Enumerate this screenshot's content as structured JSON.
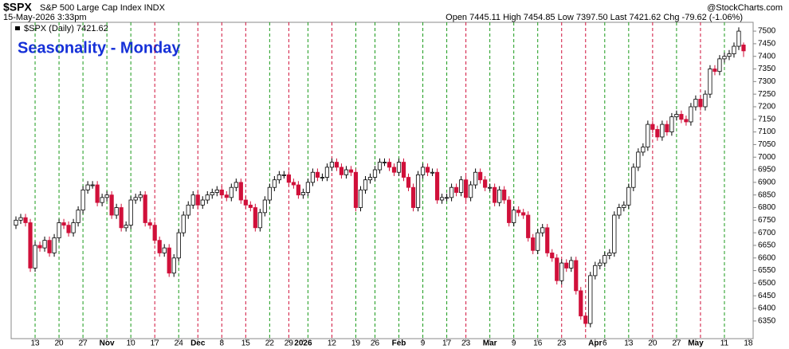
{
  "header": {
    "symbol": "$SPX",
    "name": "S&P 500 Large Cap Index INDX",
    "timestamp": "15-May-2026 3:33pm",
    "quote": "Open 7445.11  High 7454.85  Low 7397.50  Last 7421.62  Chg -79.62 (-1.06%)",
    "source": "@StockCharts.com"
  },
  "chart_data": {
    "type": "candlestick",
    "title": "Seasonality - Monday",
    "legend": "$SPX (Daily) 7421.62",
    "up_color": "#ffffff",
    "down_color": "#d0103a",
    "open": [
      6730,
      6750,
      6760,
      6740,
      6560,
      6650,
      6640,
      6670,
      6620,
      6680,
      6740,
      6730,
      6700,
      6740,
      6790,
      6870,
      6890,
      6890,
      6820,
      6840,
      6850,
      6770,
      6800,
      6720,
      6730,
      6830,
      6840,
      6850,
      6740,
      6730,
      6670,
      6620,
      6640,
      6540,
      6600,
      6700,
      6770,
      6810,
      6850,
      6810,
      6830,
      6850,
      6860,
      6870,
      6850,
      6840,
      6880,
      6900,
      6830,
      6810,
      6800,
      6720,
      6780,
      6830,
      6880,
      6910,
      6930,
      6930,
      6900,
      6890,
      6850,
      6860,
      6900,
      6940,
      6920,
      6920,
      6960,
      6980,
      6960,
      6930,
      6950,
      6940,
      6800,
      6870,
      6910,
      6920,
      6950,
      6980,
      6980,
      6960,
      6940,
      6980,
      6920,
      6880,
      6800,
      6930,
      6960,
      6940,
      6940,
      6830,
      6840,
      6840,
      6880,
      6860,
      6910,
      6840,
      6890,
      6940,
      6910,
      6880,
      6880,
      6820,
      6870,
      6830,
      6740,
      6790,
      6780,
      6770,
      6680,
      6630,
      6700,
      6720,
      6620,
      6600,
      6510,
      6580,
      6560,
      6590,
      6470,
      6370,
      6340,
      6530,
      6570,
      6580,
      6610,
      6620,
      6770,
      6800,
      6810,
      6880,
      6960,
      7020,
      7040,
      7130,
      7110,
      7080,
      7130,
      7100,
      7160,
      7170,
      7150,
      7140,
      7200,
      7230,
      7200,
      7250,
      7350,
      7340,
      7390,
      7400,
      7410,
      7440,
      7445.11
    ],
    "high": [
      6765,
      6775,
      6775,
      6755,
      6665,
      6665,
      6685,
      6685,
      6695,
      6755,
      6755,
      6745,
      6755,
      6805,
      6885,
      6905,
      6905,
      6905,
      6855,
      6865,
      6865,
      6815,
      6815,
      6745,
      6845,
      6855,
      6865,
      6865,
      6755,
      6745,
      6685,
      6655,
      6655,
      6615,
      6715,
      6785,
      6825,
      6865,
      6865,
      6845,
      6865,
      6875,
      6885,
      6885,
      6865,
      6895,
      6915,
      6915,
      6845,
      6825,
      6815,
      6795,
      6845,
      6895,
      6925,
      6945,
      6945,
      6945,
      6915,
      6905,
      6875,
      6915,
      6955,
      6955,
      6935,
      6975,
      6995,
      6995,
      6975,
      6965,
      6965,
      6955,
      6885,
      6925,
      6935,
      6965,
      6995,
      6995,
      6995,
      6975,
      6995,
      6995,
      6935,
      6895,
      6945,
      6975,
      6975,
      6955,
      6955,
      6855,
      6855,
      6895,
      6895,
      6925,
      6925,
      6905,
      6955,
      6955,
      6925,
      6895,
      6895,
      6885,
      6885,
      6845,
      6805,
      6805,
      6795,
      6785,
      6695,
      6715,
      6735,
      6735,
      6635,
      6615,
      6595,
      6595,
      6605,
      6605,
      6485,
      6385,
      6545,
      6585,
      6595,
      6625,
      6635,
      6785,
      6815,
      6825,
      6895,
      6975,
      7035,
      7055,
      7145,
      7145,
      7125,
      7145,
      7145,
      7175,
      7185,
      7185,
      7165,
      7215,
      7245,
      7245,
      7265,
      7365,
      7365,
      7405,
      7415,
      7425,
      7455,
      7515,
      7454.85
    ],
    "low": [
      6715,
      6735,
      6725,
      6545,
      6545,
      6625,
      6625,
      6605,
      6605,
      6665,
      6715,
      6685,
      6685,
      6725,
      6775,
      6855,
      6875,
      6805,
      6805,
      6825,
      6755,
      6755,
      6705,
      6705,
      6715,
      6815,
      6825,
      6725,
      6715,
      6655,
      6605,
      6605,
      6525,
      6525,
      6585,
      6685,
      6755,
      6795,
      6795,
      6795,
      6815,
      6835,
      6845,
      6835,
      6825,
      6825,
      6865,
      6815,
      6795,
      6785,
      6705,
      6705,
      6765,
      6815,
      6865,
      6895,
      6915,
      6885,
      6875,
      6835,
      6835,
      6845,
      6885,
      6905,
      6905,
      6905,
      6945,
      6945,
      6915,
      6915,
      6925,
      6785,
      6785,
      6855,
      6895,
      6905,
      6935,
      6965,
      6945,
      6925,
      6925,
      6905,
      6865,
      6785,
      6785,
      6915,
      6925,
      6925,
      6815,
      6815,
      6825,
      6825,
      6845,
      6845,
      6825,
      6825,
      6875,
      6895,
      6865,
      6865,
      6805,
      6805,
      6815,
      6725,
      6725,
      6765,
      6755,
      6665,
      6615,
      6615,
      6685,
      6605,
      6585,
      6495,
      6495,
      6545,
      6545,
      6455,
      6355,
      6325,
      6325,
      6515,
      6555,
      6565,
      6595,
      6605,
      6755,
      6785,
      6795,
      6865,
      6945,
      7005,
      7025,
      7095,
      7065,
      7065,
      7085,
      7085,
      7145,
      7135,
      7125,
      7125,
      7185,
      7185,
      7185,
      7235,
      7325,
      7325,
      7375,
      7385,
      7395,
      7425,
      7397.5
    ],
    "close": [
      6750,
      6760,
      6740,
      6560,
      6650,
      6640,
      6670,
      6620,
      6680,
      6740,
      6730,
      6700,
      6740,
      6790,
      6870,
      6890,
      6890,
      6820,
      6840,
      6850,
      6770,
      6800,
      6720,
      6730,
      6830,
      6840,
      6850,
      6740,
      6730,
      6670,
      6620,
      6640,
      6540,
      6600,
      6700,
      6770,
      6810,
      6850,
      6810,
      6830,
      6850,
      6860,
      6870,
      6850,
      6840,
      6880,
      6900,
      6830,
      6810,
      6800,
      6720,
      6780,
      6830,
      6880,
      6910,
      6930,
      6930,
      6900,
      6890,
      6850,
      6860,
      6900,
      6940,
      6920,
      6920,
      6960,
      6980,
      6960,
      6930,
      6950,
      6940,
      6800,
      6870,
      6910,
      6920,
      6950,
      6980,
      6980,
      6960,
      6940,
      6980,
      6920,
      6880,
      6800,
      6930,
      6960,
      6940,
      6940,
      6830,
      6840,
      6840,
      6880,
      6860,
      6910,
      6840,
      6890,
      6940,
      6910,
      6880,
      6880,
      6820,
      6870,
      6830,
      6740,
      6790,
      6780,
      6770,
      6680,
      6630,
      6700,
      6720,
      6620,
      6600,
      6510,
      6580,
      6560,
      6590,
      6470,
      6370,
      6340,
      6530,
      6570,
      6580,
      6610,
      6620,
      6770,
      6800,
      6810,
      6880,
      6960,
      7020,
      7040,
      7130,
      7110,
      7080,
      7130,
      7100,
      7160,
      7170,
      7150,
      7140,
      7200,
      7230,
      7200,
      7250,
      7350,
      7340,
      7390,
      7400,
      7410,
      7440,
      7500,
      7421.62
    ],
    "monday_lines": [
      {
        "value": 4,
        "color": "#1a9a1a"
      },
      {
        "value": 9,
        "color": "#1a9a1a"
      },
      {
        "value": 14,
        "color": "#1a9a1a"
      },
      {
        "value": 19,
        "color": "#1a9a1a"
      },
      {
        "value": 24,
        "color": "#1a9a1a"
      },
      {
        "value": 29,
        "color": "#d0103a"
      },
      {
        "value": 34,
        "color": "#1a9a1a"
      },
      {
        "value": 38,
        "color": "#d0103a"
      },
      {
        "value": 43,
        "color": "#d0103a"
      },
      {
        "value": 48,
        "color": "#d0103a"
      },
      {
        "value": 53,
        "color": "#1a9a1a"
      },
      {
        "value": 57,
        "color": "#d0103a"
      },
      {
        "value": 61,
        "color": "#1a9a1a"
      },
      {
        "value": 66,
        "color": "#d0103a"
      },
      {
        "value": 71,
        "color": "#1a9a1a"
      },
      {
        "value": 75,
        "color": "#1a9a1a"
      },
      {
        "value": 80,
        "color": "#1a9a1a"
      },
      {
        "value": 85,
        "color": "#1a9a1a"
      },
      {
        "value": 90,
        "color": "#1a9a1a"
      },
      {
        "value": 94,
        "color": "#d0103a"
      },
      {
        "value": 99,
        "color": "#1a9a1a"
      },
      {
        "value": 104,
        "color": "#1a9a1a"
      },
      {
        "value": 109,
        "color": "#1a9a1a"
      },
      {
        "value": 114,
        "color": "#d0103a"
      },
      {
        "value": 119,
        "color": "#d0103a"
      },
      {
        "value": 123,
        "color": "#1a9a1a"
      },
      {
        "value": 128,
        "color": "#1a9a1a"
      },
      {
        "value": 133,
        "color": "#d0103a"
      },
      {
        "value": 138,
        "color": "#1a9a1a"
      },
      {
        "value": 143,
        "color": "#d0103a"
      },
      {
        "value": 148,
        "color": "#1a9a1a"
      }
    ],
    "xlim": [
      -1,
      154
    ],
    "xticks": [
      {
        "value": 4,
        "label": "13"
      },
      {
        "value": 9,
        "label": "20"
      },
      {
        "value": 14,
        "label": "27"
      },
      {
        "value": 19,
        "label": "Nov"
      },
      {
        "value": 24,
        "label": "10"
      },
      {
        "value": 29,
        "label": "17"
      },
      {
        "value": 34,
        "label": "24"
      },
      {
        "value": 38,
        "label": "Dec"
      },
      {
        "value": 43,
        "label": "8"
      },
      {
        "value": 48,
        "label": "15"
      },
      {
        "value": 53,
        "label": "22"
      },
      {
        "value": 57,
        "label": "29"
      },
      {
        "value": 60,
        "label": "2026"
      },
      {
        "value": 66,
        "label": "12"
      },
      {
        "value": 71,
        "label": "19"
      },
      {
        "value": 75,
        "label": "26"
      },
      {
        "value": 80,
        "label": "Feb"
      },
      {
        "value": 85,
        "label": "9"
      },
      {
        "value": 90,
        "label": "17"
      },
      {
        "value": 94,
        "label": "23"
      },
      {
        "value": 99,
        "label": "Mar"
      },
      {
        "value": 104,
        "label": "9"
      },
      {
        "value": 109,
        "label": "16"
      },
      {
        "value": 114,
        "label": "23"
      },
      {
        "value": 121,
        "label": "Apr"
      },
      {
        "value": 123,
        "label": "6"
      },
      {
        "value": 128,
        "label": "13"
      },
      {
        "value": 133,
        "label": "20"
      },
      {
        "value": 138,
        "label": "27"
      },
      {
        "value": 142,
        "label": "May"
      },
      {
        "value": 148,
        "label": "11"
      },
      {
        "value": 153,
        "label": "18"
      }
    ],
    "ylim": [
      6280,
      7535
    ],
    "yticks": [
      6350,
      6400,
      6450,
      6500,
      6550,
      6600,
      6650,
      6700,
      6750,
      6800,
      6850,
      6900,
      6950,
      7000,
      7050,
      7100,
      7150,
      7200,
      7250,
      7300,
      7350,
      7400,
      7450,
      7500
    ]
  }
}
